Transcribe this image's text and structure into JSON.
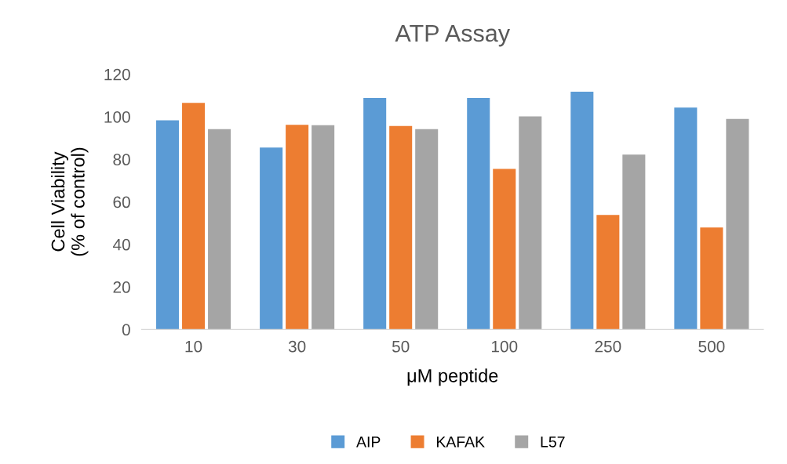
{
  "chart_data": {
    "type": "bar",
    "title": "ATP Assay",
    "xlabel": "μM peptide",
    "ylabel": "Cell Viability\n(% of control)",
    "categories": [
      "10",
      "30",
      "50",
      "100",
      "250",
      "500"
    ],
    "series": [
      {
        "name": "AIP",
        "color": "#5b9bd5",
        "values": [
          98.3,
          85.5,
          108.8,
          108.8,
          111.8,
          104.3
        ]
      },
      {
        "name": "KAFAK",
        "color": "#ed7d31",
        "values": [
          106.5,
          96.2,
          95.7,
          75.5,
          53.8,
          47.9
        ]
      },
      {
        "name": "L57",
        "color": "#a5a5a5",
        "values": [
          94.2,
          96.0,
          94.2,
          100.2,
          82.2,
          99.0
        ]
      }
    ],
    "ylim": [
      0,
      120
    ],
    "yticks": [
      0,
      20,
      40,
      60,
      80,
      100,
      120
    ],
    "grid": false,
    "legend": "bottom"
  }
}
